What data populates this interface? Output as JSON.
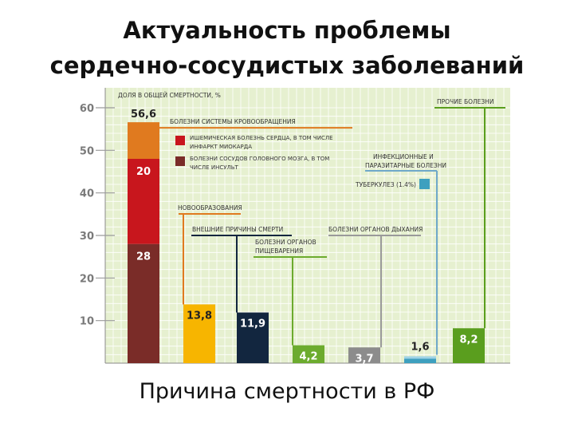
{
  "title_line1": "Актуальность проблемы",
  "title_line2": "сердечно-сосудистых заболеваний",
  "caption": "Причина смертности в РФ",
  "chart_data": {
    "type": "bar",
    "ylabel": "ДОЛЯ В ОБЩЕЙ СМЕРТНОСТИ, %",
    "ylim": [
      0,
      60
    ],
    "yticks": [
      10,
      20,
      30,
      40,
      50,
      60
    ],
    "grid": true,
    "background_color": "#e6f0d0",
    "bars": [
      {
        "name": "БОЛЕЗНИ СИСТЕМЫ КРОВООБРАЩЕНИЯ",
        "label": "56,6",
        "total": 56.6,
        "segments": [
          {
            "name": "БОЛЕЗНИ СОСУДОВ ГОЛОВНОГО МОЗГА, В ТОМ ЧИСЛЕ ИНСУЛЬТ",
            "value": 28,
            "label": "28",
            "color": "#7a2c28"
          },
          {
            "name": "ИШЕМИЧЕСКАЯ БОЛЕЗНЬ СЕРДЦА, В ТОМ ЧИСЛЕ ИНФАРКТ МИОКАРДА",
            "value": 20,
            "label": "20",
            "color": "#c8161d"
          },
          {
            "name": "",
            "value": 8.6,
            "label": "",
            "color": "#e07a1f"
          }
        ]
      },
      {
        "name": "НОВООБРАЗОВАНИЯ",
        "value": 13.8,
        "label": "13,8",
        "color": "#f7b500",
        "line_color": "#e07a1f"
      },
      {
        "name": "ВНЕШНИЕ ПРИЧИНЫ СМЕРТИ",
        "value": 11.9,
        "label": "11,9",
        "color": "#12263f",
        "line_color": "#12263f"
      },
      {
        "name": "БОЛЕЗНИ ОРГАНОВ ПИЩЕВАРЕНИЯ",
        "value": 4.2,
        "label": "4,2",
        "color": "#6cab2e",
        "line_color": "#6cab2e"
      },
      {
        "name": "БОЛЕЗНИ ОРГАНОВ ДЫХАНИЯ",
        "value": 3.7,
        "label": "3,7",
        "color": "#8c8c8c",
        "line_color": "#9a9a9a"
      },
      {
        "name": "ИНФЕКЦИОННЫЕ И ПАРАЗИТАРНЫЕ БОЛЕЗНИ",
        "label": "1,6",
        "total": 1.6,
        "line_color": "#6fa8c9",
        "segments": [
          {
            "name": "",
            "value": 1.6,
            "label": "",
            "color": "#3ea0bf"
          },
          {
            "name": "",
            "value": 0.0,
            "label": "",
            "color": "#9fd3e6"
          }
        ],
        "sub_item": {
          "name": "ТУБЕРКУЛЕЗ (1.4%)",
          "value": 1.4,
          "color": "#3ea0bf"
        }
      },
      {
        "name": "ПРОЧИЕ БОЛЕЗНИ",
        "value": 8.2,
        "label": "8,2",
        "color": "#5a9e1e",
        "line_color": "#5a9e1e"
      }
    ]
  }
}
